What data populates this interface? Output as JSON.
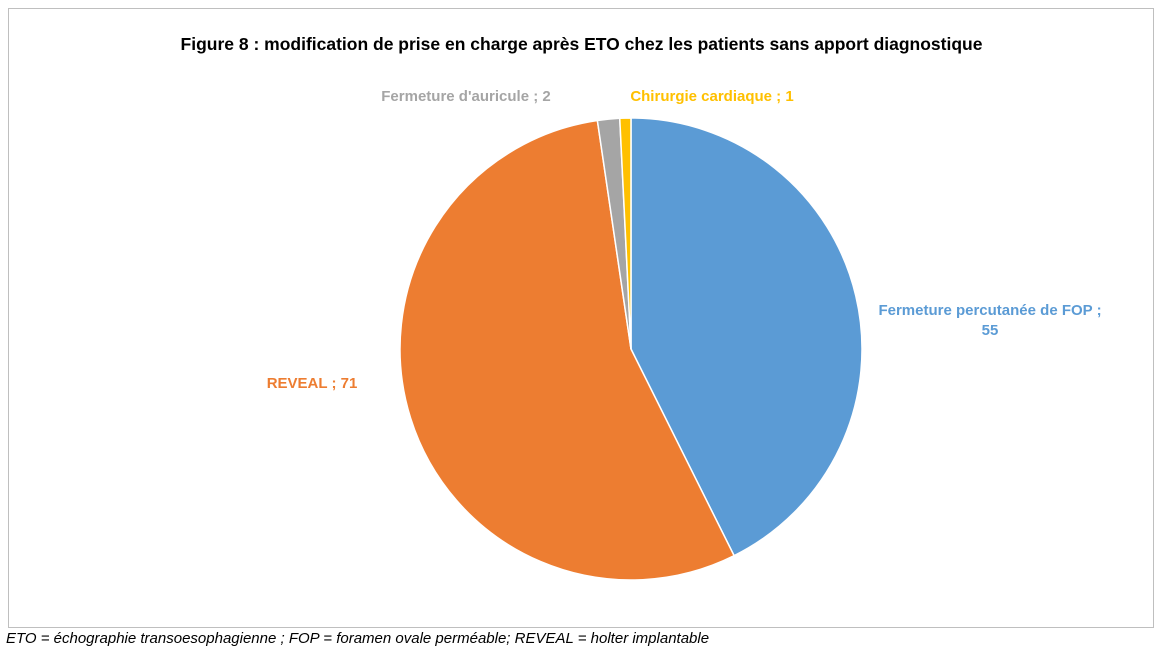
{
  "chart_data": {
    "type": "pie",
    "title": "Figure 8 : modification de prise en charge après ETO chez les patients sans apport diagnostique",
    "values": [
      55,
      71,
      2,
      1
    ],
    "value_labels": [
      "Fermeture percutanée de FOP ; 55",
      "REVEAL ; 71",
      "Fermeture d'auricule ; 2",
      "Chirurgie cardiaque ; 1"
    ],
    "colors": [
      "#5b9bd5",
      "#ed7d31",
      "#a5a5a5",
      "#ffc000"
    ],
    "footnote": "ETO = échographie transoesophagienne ; FOP = foramen ovale perméable; REVEAL = holter implantable"
  }
}
